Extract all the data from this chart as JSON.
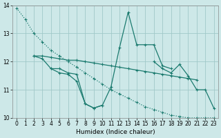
{
  "bg_color": "#cde8e8",
  "grid_color": "#a0c8c8",
  "line_color": "#1a7a6e",
  "xlabel": "Humidex (Indice chaleur)",
  "xlim": [
    -0.5,
    23.5
  ],
  "ylim": [
    10,
    14
  ],
  "yticks": [
    10,
    11,
    12,
    13,
    14
  ],
  "xticks": [
    0,
    1,
    2,
    3,
    4,
    5,
    6,
    7,
    8,
    9,
    10,
    11,
    12,
    13,
    14,
    15,
    16,
    17,
    18,
    19,
    20,
    21,
    22,
    23
  ],
  "figsize": [
    3.2,
    2.0
  ],
  "dpi": 100,
  "line1_x": [
    0,
    1,
    2,
    3,
    4,
    5,
    6,
    7,
    8,
    9,
    10,
    11,
    12,
    13,
    14,
    15,
    16,
    17,
    18,
    19,
    20,
    21,
    22,
    23
  ],
  "line1_y": [
    13.9,
    13.5,
    13.0,
    12.7,
    12.4,
    12.2,
    12.0,
    11.8,
    11.6,
    11.4,
    11.2,
    11.0,
    10.85,
    10.7,
    10.55,
    10.4,
    10.3,
    10.2,
    10.1,
    10.05,
    10.0,
    10.0,
    10.0,
    10.0
  ],
  "line1_style": "dotted",
  "line2_x": [
    2,
    3,
    4,
    5,
    6,
    7,
    8,
    9,
    10,
    11,
    12,
    13,
    14,
    15,
    16,
    17,
    18,
    19,
    20,
    21
  ],
  "line2_y": [
    12.2,
    12.2,
    12.15,
    12.1,
    12.05,
    12.05,
    12.0,
    11.95,
    11.9,
    11.85,
    11.8,
    11.75,
    11.7,
    11.65,
    11.6,
    11.55,
    11.5,
    11.45,
    11.4,
    11.35
  ],
  "line2_style": "solid",
  "line3_x": [
    4,
    5,
    6,
    7,
    8,
    9,
    10,
    11,
    12,
    13,
    14,
    15,
    16,
    17,
    18
  ],
  "line3_y": [
    11.75,
    11.75,
    11.6,
    11.55,
    10.5,
    10.35,
    10.45,
    11.1,
    12.5,
    13.75,
    12.6,
    12.6,
    12.6,
    11.85,
    11.75
  ],
  "line3_style": "solid",
  "line4_x": [
    16,
    17,
    18,
    19,
    20,
    21,
    22,
    23
  ],
  "line4_y": [
    12.0,
    11.75,
    11.6,
    11.9,
    11.5,
    11.0,
    11.0,
    10.35
  ],
  "line4_style": "solid",
  "line5_x": [
    2,
    3,
    4,
    5,
    6,
    7,
    8,
    9,
    10
  ],
  "line5_y": [
    12.2,
    12.1,
    11.75,
    11.6,
    11.55,
    11.3,
    10.5,
    10.35,
    10.45
  ],
  "line5_style": "solid"
}
